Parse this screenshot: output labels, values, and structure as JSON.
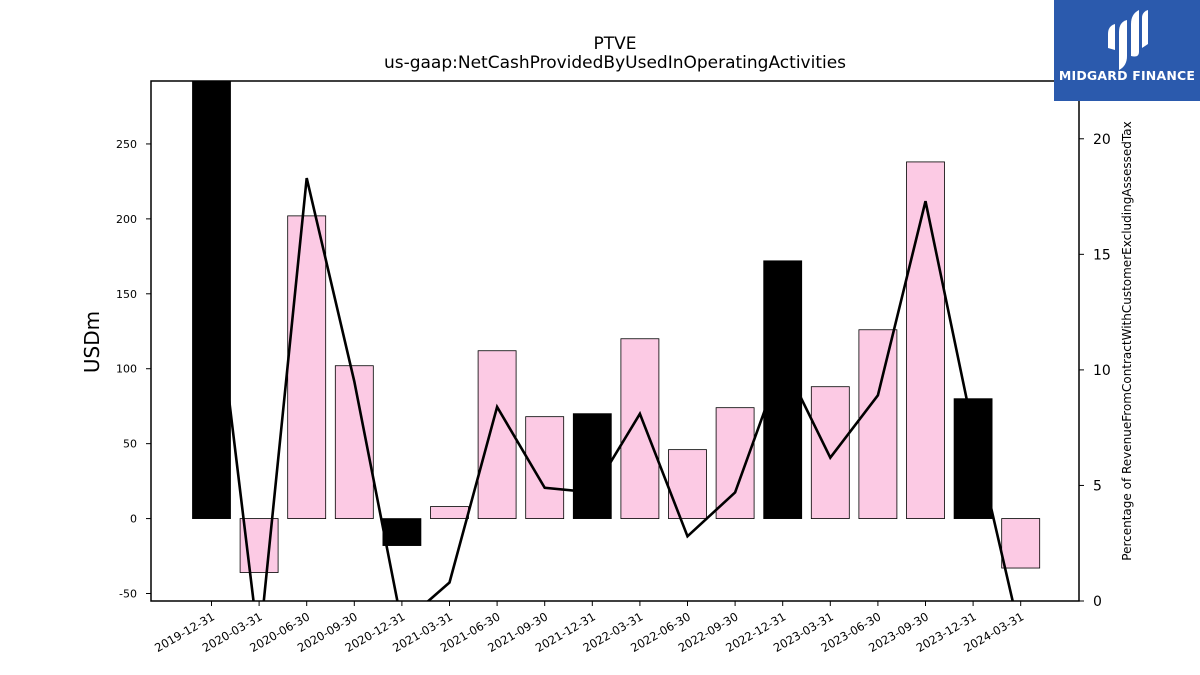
{
  "brand": {
    "name": "MIDGARD FINANCE",
    "bg_color": "#2b5aad"
  },
  "chart_data": {
    "type": "bar",
    "title": "PTVE",
    "subtitle": "us-gaap:NetCashProvidedByUsedInOperatingActivities",
    "ylabel": "USDm",
    "y2label": "Percentage of RevenueFromContractWithCustomerExcludingAssessedTax",
    "ylim": [
      -55,
      292
    ],
    "y2lim": [
      0,
      22.5
    ],
    "yticks": [
      -50,
      0,
      50,
      100,
      150,
      200,
      250
    ],
    "y2ticks": [
      0,
      5,
      10,
      15,
      20
    ],
    "grid": false,
    "categories": [
      "2019-12-31",
      "2020-03-31",
      "2020-06-30",
      "2020-09-30",
      "2020-12-31",
      "2021-03-31",
      "2021-06-30",
      "2021-09-30",
      "2021-12-31",
      "2022-03-31",
      "2022-06-30",
      "2022-09-30",
      "2022-12-31",
      "2023-03-31",
      "2023-06-30",
      "2023-09-30",
      "2023-12-31",
      "2024-03-31"
    ],
    "series": [
      {
        "kind": "bar",
        "values": [
          292,
          -36,
          202,
          102,
          -18,
          8,
          112,
          68,
          70,
          120,
          46,
          74,
          172,
          88,
          126,
          238,
          80,
          -33
        ],
        "colors": [
          "#000000",
          "#fccae4",
          "#fccae4",
          "#fccae4",
          "#000000",
          "#fccae4",
          "#fccae4",
          "#fccae4",
          "#000000",
          "#fccae4",
          "#fccae4",
          "#fccae4",
          "#000000",
          "#fccae4",
          "#fccae4",
          "#fccae4",
          "#000000",
          "#fccae4"
        ]
      },
      {
        "kind": "line",
        "axis": "right",
        "color": "#000000",
        "values": [
          15.0,
          -2.0,
          18.3,
          9.5,
          -1.0,
          0.8,
          8.4,
          4.9,
          4.7,
          8.1,
          2.8,
          4.7,
          10.4,
          6.2,
          8.9,
          17.3,
          7.4,
          -1.5
        ]
      }
    ]
  }
}
